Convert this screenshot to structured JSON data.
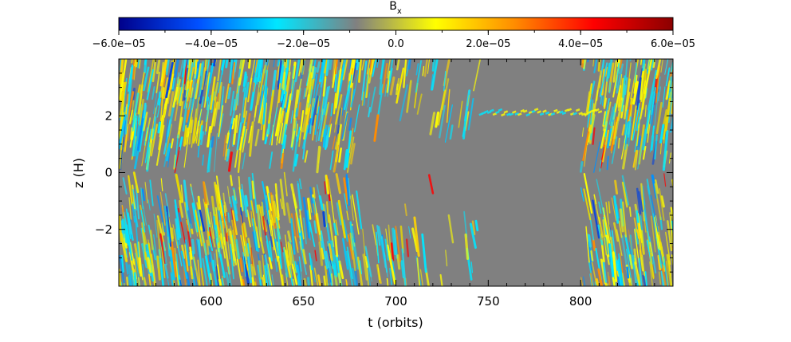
{
  "chart_data": {
    "type": "heatmap",
    "title": "B",
    "title_subscript": "x",
    "xlabel": "t (orbits)",
    "ylabel": "z (H)",
    "xlim": [
      550,
      850
    ],
    "ylim": [
      -4,
      4
    ],
    "x_ticks": [
      600,
      650,
      700,
      750,
      800
    ],
    "x_tick_labels": [
      "600",
      "650",
      "700",
      "750",
      "800"
    ],
    "y_ticks": [
      2,
      0,
      -2
    ],
    "y_tick_labels": [
      "2",
      "0",
      "−2"
    ],
    "colorbar": {
      "range": [
        -6e-05,
        6e-05
      ],
      "tick_values": [
        -6e-05,
        -4e-05,
        -2e-05,
        0.0,
        2e-05,
        4e-05,
        6e-05
      ],
      "tick_labels": [
        "−6.0e−05",
        "−4.0e−05",
        "−2.0e−05",
        "0.0",
        "2.0e−05",
        "4.0e−05",
        "6.0e−05"
      ],
      "colormap_stops": [
        "#00008b",
        "#0050ff",
        "#00e6ff",
        "#808080",
        "#ffff00",
        "#ff8c00",
        "#ff0000",
        "#8b0000"
      ]
    },
    "features": {
      "background_color": "#808080",
      "quiet_region_t": [
        680,
        800
      ],
      "quiet_region_z": [
        -1.8,
        1.8
      ],
      "active_layer_z_upper": [
        0.8,
        3.8
      ],
      "active_layer_z_lower": [
        -3.8,
        -0.8
      ],
      "wave_front_z": 2.1,
      "wave_front_t": [
        745,
        810
      ]
    }
  }
}
